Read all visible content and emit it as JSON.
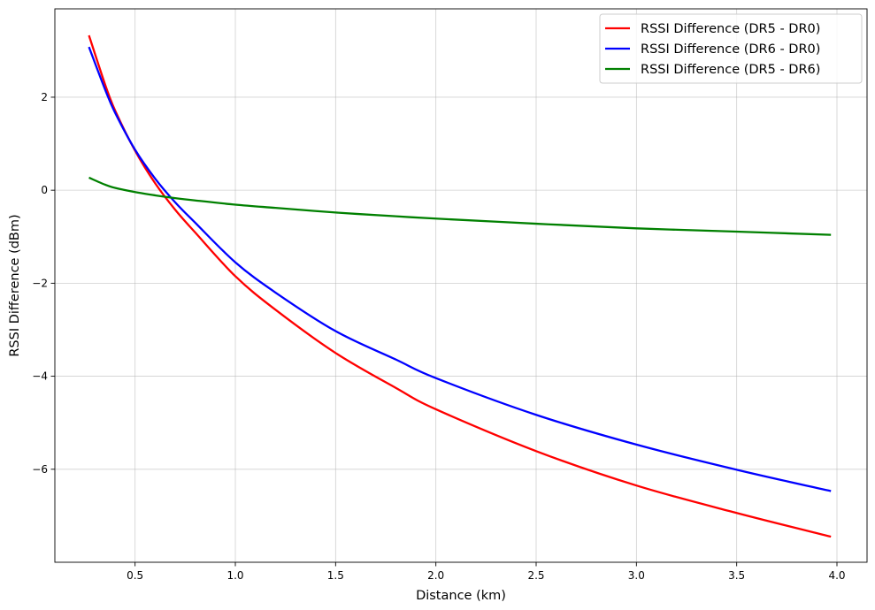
{
  "chart_data": {
    "type": "line",
    "title": "",
    "xlabel": "Distance (km)",
    "ylabel": "RSSI Difference (dBm)",
    "xlim": [
      0.1,
      4.15
    ],
    "ylim": [
      -8.0,
      3.9
    ],
    "xticks": [
      0.5,
      1.0,
      1.5,
      2.0,
      2.5,
      3.0,
      3.5,
      4.0
    ],
    "xtick_labels": [
      "0.5",
      "1.0",
      "1.5",
      "2.0",
      "2.5",
      "3.0",
      "3.5",
      "4.0"
    ],
    "yticks": [
      -6,
      -4,
      -2,
      0,
      2
    ],
    "ytick_labels": [
      "−6",
      "−4",
      "−2",
      "0",
      "2"
    ],
    "grid": true,
    "legend_position": "top-right",
    "x": [
      0.27,
      0.35,
      0.4,
      0.5,
      0.6,
      0.7,
      0.8,
      1.0,
      1.2,
      1.5,
      1.8,
      2.0,
      2.5,
      3.0,
      3.5,
      3.97
    ],
    "series": [
      {
        "name": "RSSI Difference (DR5 - DR0)",
        "color": "#ff0000",
        "values": [
          3.33,
          2.28,
          1.72,
          0.85,
          0.15,
          -0.42,
          -0.91,
          -1.85,
          -2.57,
          -3.5,
          -4.25,
          -4.71,
          -5.61,
          -6.35,
          -6.94,
          -7.45
        ]
      },
      {
        "name": "RSSI Difference (DR6 - DR0)",
        "color": "#0000ff",
        "values": [
          3.08,
          2.17,
          1.67,
          0.87,
          0.25,
          -0.26,
          -0.7,
          -1.55,
          -2.2,
          -3.03,
          -3.64,
          -4.04,
          -4.83,
          -5.47,
          -6.01,
          -6.47
        ]
      },
      {
        "name": "RSSI Difference (DR5 - DR6)",
        "color": "#008000",
        "values": [
          0.27,
          0.12,
          0.05,
          -0.04,
          -0.11,
          -0.17,
          -0.22,
          -0.31,
          -0.38,
          -0.48,
          -0.56,
          -0.61,
          -0.72,
          -0.82,
          -0.89,
          -0.96
        ]
      }
    ]
  }
}
